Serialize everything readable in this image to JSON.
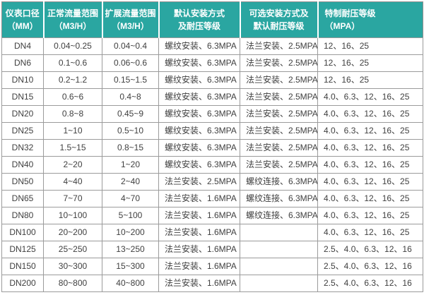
{
  "colors": {
    "header_bg": "#2aa6a1",
    "header_text": "#ffffff",
    "outer_border": "#8f8f8f",
    "inner_border": "#9b9b9b",
    "row_bg": "#ffffff",
    "body_text": "#3f3f3f"
  },
  "table": {
    "headers": [
      {
        "line1": "仪表口径",
        "line2": "（MM）"
      },
      {
        "line1": "正常流量范围",
        "line2": "（M3/H）"
      },
      {
        "line1": "扩展流量范围",
        "line2": "（M3/H）"
      },
      {
        "line1": "默认安装方式",
        "line2": "及耐压等级"
      },
      {
        "line1": "可选安装方式及",
        "line2": "默认耐压等级"
      },
      {
        "line1": "特制耐压等级",
        "line2": "（MPA）"
      }
    ],
    "rows": [
      [
        "DN4",
        "0.04~0.25",
        "0.04~0.4",
        "螺纹安装、6.3MPA",
        "法兰安装、2.5MPA",
        "12、16、25"
      ],
      [
        "DN6",
        "0.1~0.6",
        "0.06~0.6",
        "螺纹安装、6.3MPA",
        "法兰安装、2.5MPA",
        "12、16、25"
      ],
      [
        "DN10",
        "0.2~1.2",
        "0.15~1.5",
        "螺纹安装、6.3MPA",
        "法兰安装、2.5MPA",
        "12、16、25"
      ],
      [
        "DN15",
        "0.6~6",
        "0.4~8",
        "螺纹安装、6.3MPA",
        "法兰安装、2.5MPA",
        "4.0、6.3、12、16、25"
      ],
      [
        "DN20",
        "0.8~8",
        "0.45~9",
        "螺纹安装、6.3MPA",
        "法兰安装、2.5MPA",
        "4.0、6.3、12、16、25"
      ],
      [
        "DN25",
        "1~10",
        "0.5~10",
        "螺纹安装、6.3MPA",
        "法兰安装、2.5MPA",
        "4.0、6.3、12、16、25"
      ],
      [
        "DN32",
        "1.5~15",
        "0.8~15",
        "螺纹安装、6.3MPA",
        "法兰安装、2.5MPA",
        "4.0、6.3、12、16、25"
      ],
      [
        "DN40",
        "2~20",
        "1~20",
        "螺纹安装、6.3MPA",
        "法兰安装、2.5MPA",
        "4.0、6.3、12、16、25"
      ],
      [
        "DN50",
        "4~40",
        "2~40",
        "法兰安装、2.5MPA",
        "螺纹连接、6.3MPA",
        "4.0、6.3、12、16、25"
      ],
      [
        "DN65",
        "7~70",
        "4~70",
        "法兰安装、1.6MPA",
        "螺纹连接、6.3MPA",
        "4.0、6.3、12、16、25"
      ],
      [
        "DN80",
        "10~100",
        "5~100",
        "法兰安装、1.6MPA",
        "螺纹连接、6.3MPA",
        "4.0、6.3、12、16、25"
      ],
      [
        "DN100",
        "20~200",
        "10~200",
        "法兰安装、1.6MPA",
        "",
        "4.0、6.3、12、16、25"
      ],
      [
        "DN125",
        "25~250",
        "13~250",
        "法兰安装、1.6MPA",
        "",
        "2.5、4.0、6.3、12、16"
      ],
      [
        "DN150",
        "30~300",
        "15~300",
        "法兰安装、1.6MPA",
        "",
        "2.5、4.0、6.3、12、16"
      ],
      [
        "DN200",
        "80~800",
        "40~800",
        "法兰安装、1.6MPA",
        "",
        "2.5、4.0、6.3、12、16"
      ]
    ]
  }
}
